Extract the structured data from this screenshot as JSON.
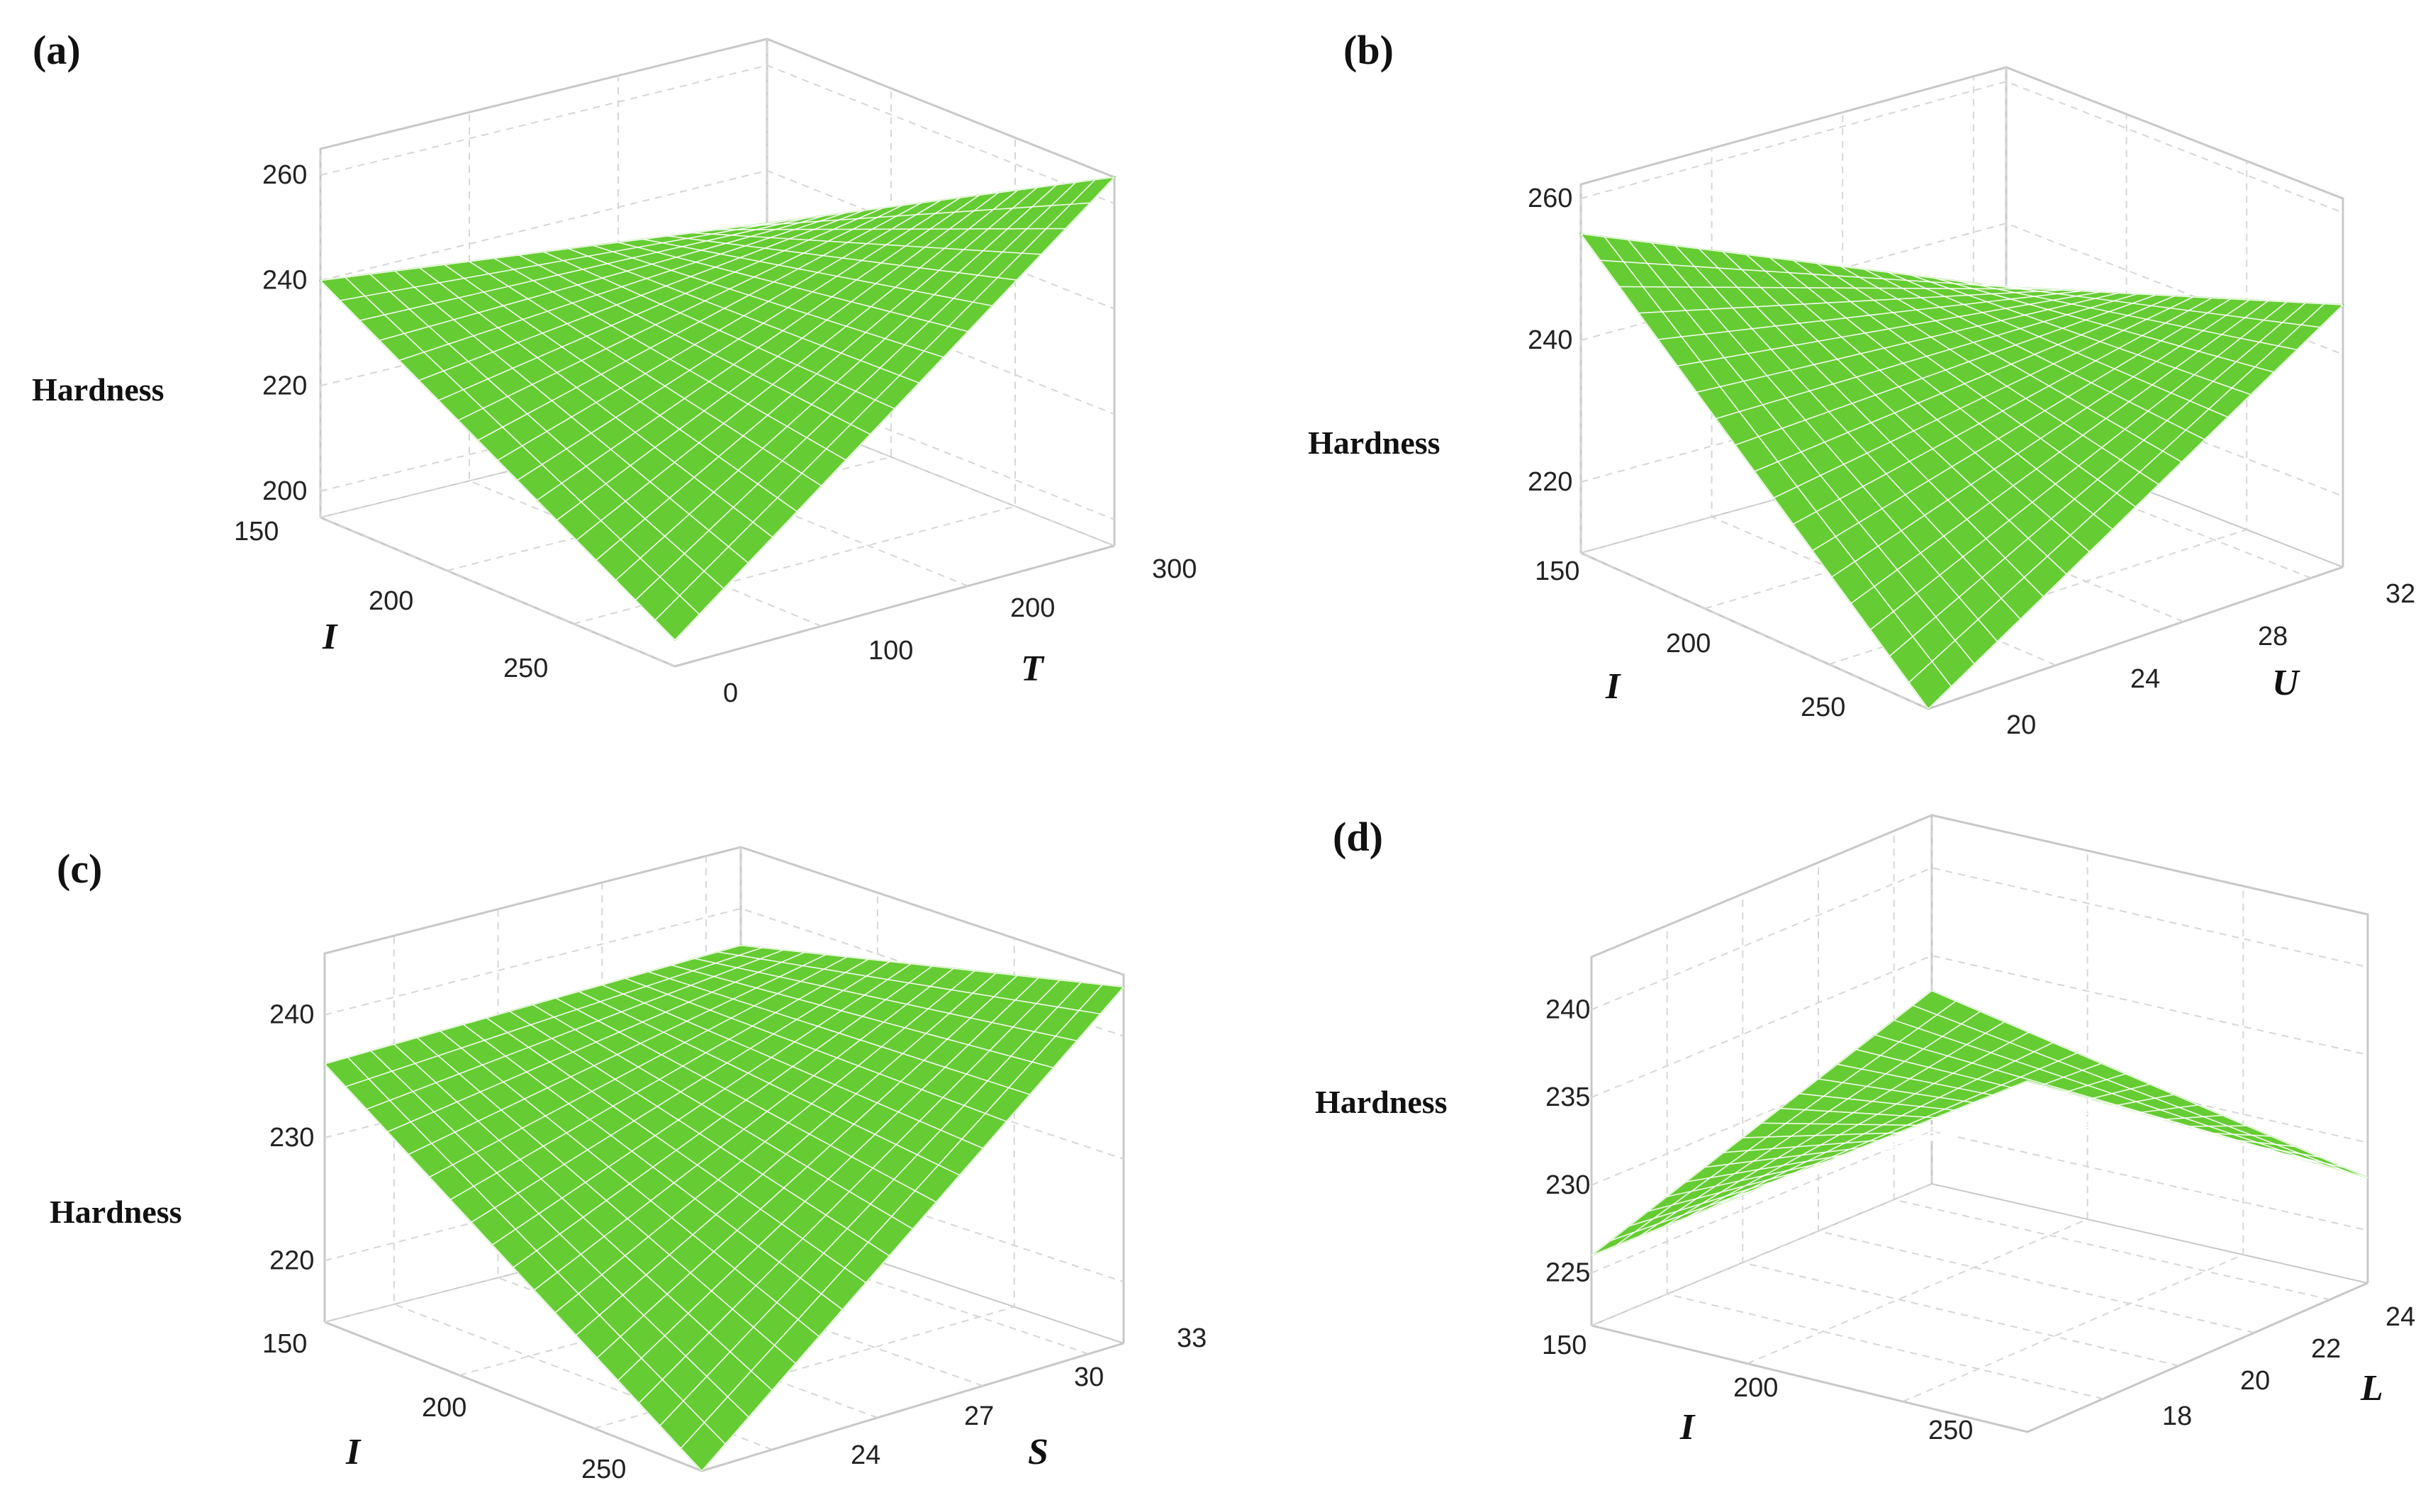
{
  "colors": {
    "surface": "#66cc33",
    "mesh": "#ffffff",
    "box": "#c8c8c8",
    "grid": "#d6d6d6",
    "text": "#111111"
  },
  "chart_data": [
    {
      "type": "surface",
      "panel_label": "(a)",
      "zlabel": "Hardness",
      "xlabel": "I",
      "ylabel": "T",
      "xlim": [
        150,
        290
      ],
      "ylim": [
        0,
        300
      ],
      "zlim": [
        195,
        265
      ],
      "x_ticks": [
        "150",
        "200",
        "250"
      ],
      "y_ticks": [
        "0",
        "100",
        "200",
        "300"
      ],
      "z_ticks": [
        "200",
        "220",
        "240",
        "260"
      ],
      "corner_values": {
        "I150_Tmin": 240,
        "I290_Tmin": 200,
        "I150_Tmax": 230,
        "I290_Tmax": 265
      },
      "grid": true
    },
    {
      "type": "surface",
      "panel_label": "(b)",
      "zlabel": "Hardness",
      "xlabel": "I",
      "ylabel": "U",
      "xlim": [
        150,
        290
      ],
      "ylim": [
        20,
        33
      ],
      "zlim": [
        210,
        262
      ],
      "x_ticks": [
        "150",
        "200",
        "250"
      ],
      "y_ticks": [
        "20",
        "24",
        "28",
        "32"
      ],
      "z_ticks": [
        "220",
        "240",
        "260"
      ],
      "corner_values": {
        "I150_Umin": 255,
        "I290_Umin": 210,
        "I150_Umax": 231,
        "I290_Umax": 247
      },
      "grid": true
    },
    {
      "type": "surface",
      "panel_label": "(c)",
      "zlabel": "Hardness",
      "xlabel": "I",
      "ylabel": "S",
      "xlim": [
        150,
        290
      ],
      "ylim": [
        22,
        34
      ],
      "zlim": [
        215,
        245
      ],
      "x_ticks": [
        "150",
        "200",
        "250"
      ],
      "y_ticks": [
        "24",
        "27",
        "30",
        "33"
      ],
      "z_ticks": [
        "220",
        "230",
        "240"
      ],
      "corner_values": {
        "I150_Smin": 236,
        "I290_Smin": 215,
        "I150_Smax": 237,
        "I290_Smax": 244
      },
      "grid": true
    },
    {
      "type": "surface",
      "panel_label": "(d)",
      "zlabel": "Hardness",
      "xlabel": "I",
      "ylabel": "L",
      "xlim": [
        150,
        290
      ],
      "ylim": [
        16,
        25
      ],
      "zlim": [
        222,
        243
      ],
      "x_ticks": [
        "150",
        "200",
        "250"
      ],
      "y_ticks": [
        "18",
        "20",
        "22",
        "24"
      ],
      "z_ticks": [
        "225",
        "230",
        "235",
        "240"
      ],
      "corner_values": {
        "I150_Lmin": 226,
        "I290_Lmin": 242,
        "I150_Lmax": 233,
        "I290_Lmax": 228
      },
      "grid": true
    }
  ]
}
